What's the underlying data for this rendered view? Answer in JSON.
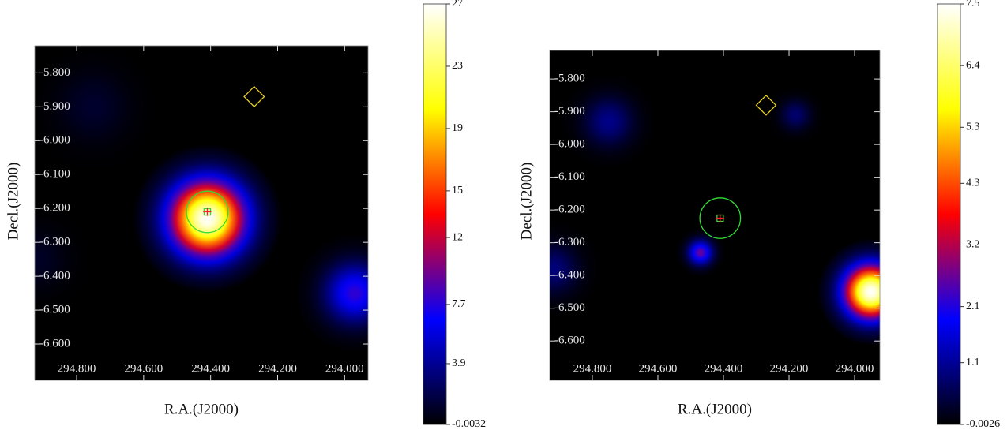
{
  "chart_data": [
    {
      "type": "heatmap",
      "x_label": "R.A.(J2000)",
      "y_label": "Decl.(J2000)",
      "xlim": [
        294.925,
        293.93
      ],
      "ylim": [
        -6.707,
        -5.72
      ],
      "xticks": [
        {
          "value": 294.8,
          "label": "294.800"
        },
        {
          "value": 294.6,
          "label": "294.600"
        },
        {
          "value": 294.4,
          "label": "294.400"
        },
        {
          "value": 294.2,
          "label": "294.200"
        },
        {
          "value": 294.0,
          "label": "294.000"
        }
      ],
      "yticks": [
        {
          "value": -5.8,
          "label": "-5.800"
        },
        {
          "value": -5.9,
          "label": "-5.900"
        },
        {
          "value": -6.0,
          "label": "-6.000"
        },
        {
          "value": -6.1,
          "label": "-6.100"
        },
        {
          "value": -6.2,
          "label": "-6.200"
        },
        {
          "value": -6.3,
          "label": "-6.300"
        },
        {
          "value": -6.4,
          "label": "-6.400"
        },
        {
          "value": -6.5,
          "label": "-6.500"
        },
        {
          "value": -6.6,
          "label": "-6.600"
        }
      ],
      "colorbar_lim": [
        -0.0032,
        27
      ],
      "colorbar_ticks": [
        -0.0032,
        3.9,
        7.7,
        12,
        15,
        19,
        23,
        27
      ],
      "colormap": [
        "#000000",
        "#0000ff",
        "#ff0000",
        "#ffff00",
        "#ffffff"
      ],
      "sources": [
        {
          "x": 294.41,
          "y": -6.23,
          "value": 27,
          "sigma": 0.075
        },
        {
          "x": 293.97,
          "y": -6.45,
          "value": 8,
          "sigma": 0.06
        },
        {
          "x": 294.75,
          "y": -5.9,
          "value": 1.2,
          "sigma": 0.07
        },
        {
          "x": 294.92,
          "y": -6.35,
          "value": 1,
          "sigma": 0.06
        }
      ],
      "markers": [
        {
          "shape": "circle",
          "color": "#33dd33",
          "x": 294.41,
          "y": -6.21,
          "radius": 0.062
        },
        {
          "shape": "cross",
          "color": "#ff2020",
          "x": 294.41,
          "y": -6.21,
          "radius": 0.012
        },
        {
          "shape": "diamond",
          "color": "#e8d020",
          "x": 294.27,
          "y": -5.87,
          "radius": 0.03
        }
      ]
    },
    {
      "type": "heatmap",
      "x_label": "R.A.(J2000)",
      "y_label": "Decl.(J2000)",
      "xlim": [
        294.93,
        293.923
      ],
      "ylim": [
        -6.72,
        -5.713
      ],
      "xticks": [
        {
          "value": 294.8,
          "label": "294.800"
        },
        {
          "value": 294.6,
          "label": "294.600"
        },
        {
          "value": 294.4,
          "label": "294.400"
        },
        {
          "value": 294.2,
          "label": "294.200"
        },
        {
          "value": 294.0,
          "label": "294.000"
        }
      ],
      "yticks": [
        {
          "value": -5.8,
          "label": "-5.800"
        },
        {
          "value": -5.9,
          "label": "-5.900"
        },
        {
          "value": -6.0,
          "label": "-6.000"
        },
        {
          "value": -6.1,
          "label": "-6.100"
        },
        {
          "value": -6.2,
          "label": "-6.200"
        },
        {
          "value": -6.3,
          "label": "-6.300"
        },
        {
          "value": -6.4,
          "label": "-6.400"
        },
        {
          "value": -6.5,
          "label": "-6.500"
        },
        {
          "value": -6.6,
          "label": "-6.600"
        }
      ],
      "colorbar_lim": [
        -0.0026,
        7.5
      ],
      "colorbar_ticks": [
        -0.0026,
        1.1,
        2.1,
        3.2,
        4.3,
        5.3,
        6.4,
        7.5
      ],
      "colormap": [
        "#000000",
        "#0000ff",
        "#ff0000",
        "#ffff00",
        "#ffffff"
      ],
      "sources": [
        {
          "x": 293.95,
          "y": -6.45,
          "value": 7.5,
          "sigma": 0.055
        },
        {
          "x": 294.47,
          "y": -6.33,
          "value": 2.6,
          "sigma": 0.025
        },
        {
          "x": 294.75,
          "y": -5.93,
          "value": 1,
          "sigma": 0.05
        },
        {
          "x": 294.18,
          "y": -5.91,
          "value": 0.8,
          "sigma": 0.03
        },
        {
          "x": 294.92,
          "y": -6.38,
          "value": 0.9,
          "sigma": 0.05
        }
      ],
      "markers": [
        {
          "shape": "circle",
          "color": "#33dd33",
          "x": 294.41,
          "y": -6.225,
          "radius": 0.062
        },
        {
          "shape": "cross",
          "color": "#ff2020",
          "x": 294.41,
          "y": -6.225,
          "radius": 0.012
        },
        {
          "shape": "diamond",
          "color": "#e8d020",
          "x": 294.27,
          "y": -5.88,
          "radius": 0.03
        }
      ]
    }
  ]
}
